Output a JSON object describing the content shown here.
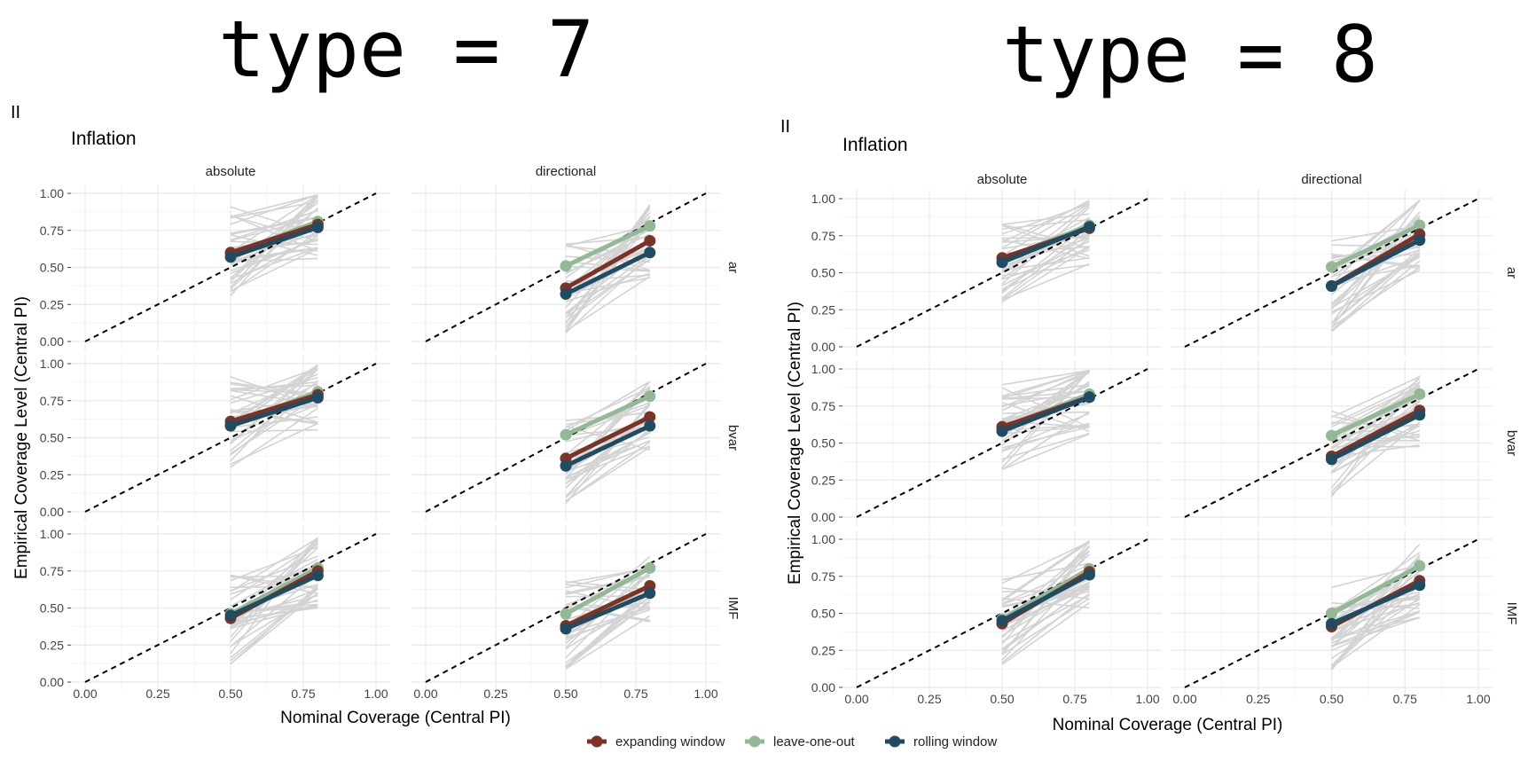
{
  "header": {
    "left_title": "type = 7",
    "right_title": "type = 8"
  },
  "colors": {
    "expanding window": "#7a3325",
    "leave-one-out": "#93b895",
    "rolling window": "#1f4b63",
    "background_lines": "#d3d3d3",
    "grid": "#ececec",
    "diagonal": "#000000"
  },
  "legend": {
    "items": [
      "expanding window",
      "leave-one-out",
      "rolling window"
    ]
  },
  "chart_data": [
    {
      "type": "line",
      "figure_tag": "II",
      "title": "Inflation",
      "xlabel": "Nominal Coverage (Central PI)",
      "ylabel": "Empirical Coverage Level (Central PI)",
      "xlim": [
        0,
        1
      ],
      "ylim": [
        0,
        1
      ],
      "xticks": [
        "0.00",
        "0.25",
        "0.50",
        "0.75",
        "1.00"
      ],
      "yticks": [
        "0.00",
        "0.25",
        "0.50",
        "0.75",
        "1.00"
      ],
      "facet_cols": [
        "absolute",
        "directional"
      ],
      "facet_rows": [
        "ar",
        "bvar",
        "IMF"
      ],
      "x": [
        0.5,
        0.8
      ],
      "panels": [
        {
          "col": "absolute",
          "row": "ar",
          "series": [
            {
              "name": "expanding window",
              "values": [
                0.6,
                0.79
              ]
            },
            {
              "name": "leave-one-out",
              "values": [
                0.59,
                0.81
              ]
            },
            {
              "name": "rolling window",
              "values": [
                0.57,
                0.77
              ]
            }
          ]
        },
        {
          "col": "directional",
          "row": "ar",
          "series": [
            {
              "name": "expanding window",
              "values": [
                0.36,
                0.68
              ]
            },
            {
              "name": "leave-one-out",
              "values": [
                0.51,
                0.78
              ]
            },
            {
              "name": "rolling window",
              "values": [
                0.32,
                0.6
              ]
            }
          ]
        },
        {
          "col": "absolute",
          "row": "bvar",
          "series": [
            {
              "name": "expanding window",
              "values": [
                0.61,
                0.79
              ]
            },
            {
              "name": "leave-one-out",
              "values": [
                0.59,
                0.81
              ]
            },
            {
              "name": "rolling window",
              "values": [
                0.58,
                0.77
              ]
            }
          ]
        },
        {
          "col": "directional",
          "row": "bvar",
          "series": [
            {
              "name": "expanding window",
              "values": [
                0.36,
                0.64
              ]
            },
            {
              "name": "leave-one-out",
              "values": [
                0.52,
                0.78
              ]
            },
            {
              "name": "rolling window",
              "values": [
                0.31,
                0.58
              ]
            }
          ]
        },
        {
          "col": "absolute",
          "row": "IMF",
          "series": [
            {
              "name": "expanding window",
              "values": [
                0.43,
                0.75
              ]
            },
            {
              "name": "leave-one-out",
              "values": [
                0.46,
                0.77
              ]
            },
            {
              "name": "rolling window",
              "values": [
                0.45,
                0.72
              ]
            }
          ]
        },
        {
          "col": "directional",
          "row": "IMF",
          "series": [
            {
              "name": "expanding window",
              "values": [
                0.38,
                0.65
              ]
            },
            {
              "name": "leave-one-out",
              "values": [
                0.46,
                0.77
              ]
            },
            {
              "name": "rolling window",
              "values": [
                0.36,
                0.6
              ]
            }
          ]
        }
      ]
    },
    {
      "type": "line",
      "figure_tag": "II",
      "title": "Inflation",
      "xlabel": "Nominal Coverage (Central PI)",
      "ylabel": "Empirical Coverage Level (Central PI)",
      "xlim": [
        0,
        1
      ],
      "ylim": [
        0,
        1
      ],
      "xticks": [
        "0.00",
        "0.25",
        "0.50",
        "0.75",
        "1.00"
      ],
      "yticks": [
        "0.00",
        "0.25",
        "0.50",
        "0.75",
        "1.00"
      ],
      "facet_cols": [
        "absolute",
        "directional"
      ],
      "facet_rows": [
        "ar",
        "bvar",
        "IMF"
      ],
      "x": [
        0.5,
        0.8
      ],
      "panels": [
        {
          "col": "absolute",
          "row": "ar",
          "series": [
            {
              "name": "expanding window",
              "values": [
                0.6,
                0.8
              ]
            },
            {
              "name": "leave-one-out",
              "values": [
                0.59,
                0.82
              ]
            },
            {
              "name": "rolling window",
              "values": [
                0.57,
                0.81
              ]
            }
          ]
        },
        {
          "col": "directional",
          "row": "ar",
          "series": [
            {
              "name": "expanding window",
              "values": [
                0.41,
                0.76
              ]
            },
            {
              "name": "leave-one-out",
              "values": [
                0.54,
                0.82
              ]
            },
            {
              "name": "rolling window",
              "values": [
                0.41,
                0.72
              ]
            }
          ]
        },
        {
          "col": "absolute",
          "row": "bvar",
          "series": [
            {
              "name": "expanding window",
              "values": [
                0.61,
                0.81
              ]
            },
            {
              "name": "leave-one-out",
              "values": [
                0.6,
                0.83
              ]
            },
            {
              "name": "rolling window",
              "values": [
                0.58,
                0.81
              ]
            }
          ]
        },
        {
          "col": "directional",
          "row": "bvar",
          "series": [
            {
              "name": "expanding window",
              "values": [
                0.41,
                0.72
              ]
            },
            {
              "name": "leave-one-out",
              "values": [
                0.55,
                0.83
              ]
            },
            {
              "name": "rolling window",
              "values": [
                0.39,
                0.69
              ]
            }
          ]
        },
        {
          "col": "absolute",
          "row": "IMF",
          "series": [
            {
              "name": "expanding window",
              "values": [
                0.43,
                0.78
              ]
            },
            {
              "name": "leave-one-out",
              "values": [
                0.46,
                0.8
              ]
            },
            {
              "name": "rolling window",
              "values": [
                0.45,
                0.76
              ]
            }
          ]
        },
        {
          "col": "directional",
          "row": "IMF",
          "series": [
            {
              "name": "expanding window",
              "values": [
                0.41,
                0.72
              ]
            },
            {
              "name": "leave-one-out",
              "values": [
                0.5,
                0.82
              ]
            },
            {
              "name": "rolling window",
              "values": [
                0.43,
                0.69
              ]
            }
          ]
        }
      ]
    }
  ]
}
